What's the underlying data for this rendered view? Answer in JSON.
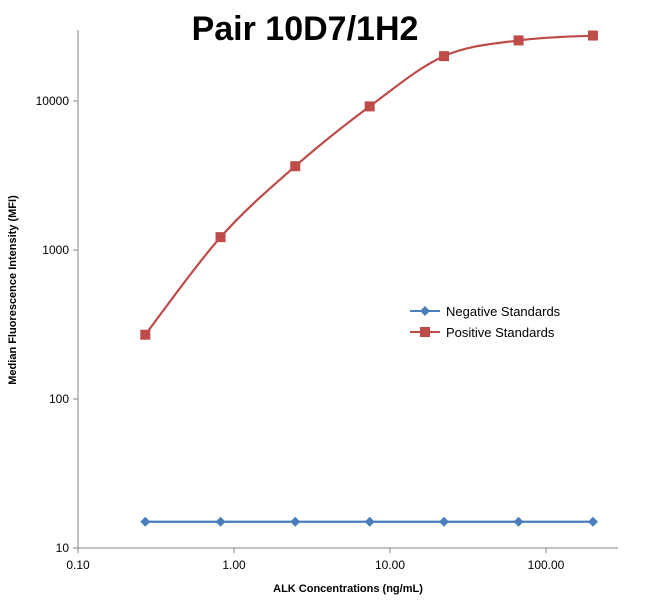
{
  "chart_data": {
    "type": "line",
    "title": "Pair 10D7/1H2",
    "xlabel": "ALK Concentrations  (ng/mL)",
    "ylabel": "Median Fluorescence Intensity  (MFI)",
    "x_scale": "log",
    "y_scale": "log",
    "xlim": [
      0.1,
      300
    ],
    "ylim": [
      10,
      30000
    ],
    "x_ticks": [
      0.1,
      1,
      10,
      100
    ],
    "x_tick_labels": [
      "0.10",
      "1.00",
      "10.00",
      "100.00"
    ],
    "y_ticks": [
      10,
      100,
      1000,
      10000
    ],
    "y_tick_labels": [
      "10",
      "100",
      "1000",
      "10000"
    ],
    "grid": false,
    "legend_position": "right-middle",
    "x": [
      0.27,
      0.82,
      2.47,
      7.41,
      22.2,
      66.7,
      200
    ],
    "series": [
      {
        "name": "Negative Standards",
        "marker": "diamond",
        "color": "#4a7ebb",
        "values": [
          15,
          15,
          15,
          15,
          15,
          15,
          15
        ]
      },
      {
        "name": "Positive Standards",
        "marker": "square",
        "color": "#be4b48",
        "values": [
          270,
          1220,
          3650,
          9200,
          20000,
          25500,
          27500
        ]
      }
    ]
  }
}
